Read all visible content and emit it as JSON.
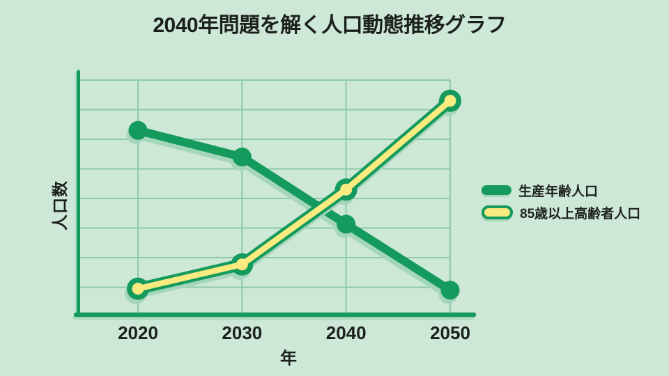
{
  "title": "2040年問題を解く人口動態推移グラフ",
  "colors": {
    "background": "#cde8d6",
    "gridline": "#87c7a3",
    "line_green": "#149a5c",
    "line_yellow": "#f9eb7f",
    "shadow": "#a3d6ba",
    "text": "#1c201d"
  },
  "chart_data": {
    "type": "line",
    "title": "2040年問題を解く人口動態推移グラフ",
    "xlabel": "年",
    "ylabel": "人口数",
    "x": [
      2020,
      2030,
      2040,
      2050
    ],
    "x_tick_labels": [
      "2020",
      "2030",
      "2040",
      "2050"
    ],
    "y_tick_labels": [],
    "ylim": [
      0,
      8
    ],
    "grid": true,
    "legend_position": "right-outside",
    "series": [
      {
        "name": "生産年齢人口",
        "style": "solid-green-line-with-dots",
        "values": [
          6.3,
          5.4,
          3.13,
          0.9
        ]
      },
      {
        "name": "85歳以上高齢者人口",
        "style": "yellow-line-green-outline-with-ring-dots",
        "values": [
          0.95,
          1.77,
          4.3,
          7.3
        ]
      }
    ]
  },
  "legend": {
    "items": [
      {
        "label": "生産年齢人口",
        "swatch": "green-pill-icon"
      },
      {
        "label": "85歳以上高齢者人口",
        "swatch": "yellow-pill-green-border-icon"
      }
    ]
  }
}
